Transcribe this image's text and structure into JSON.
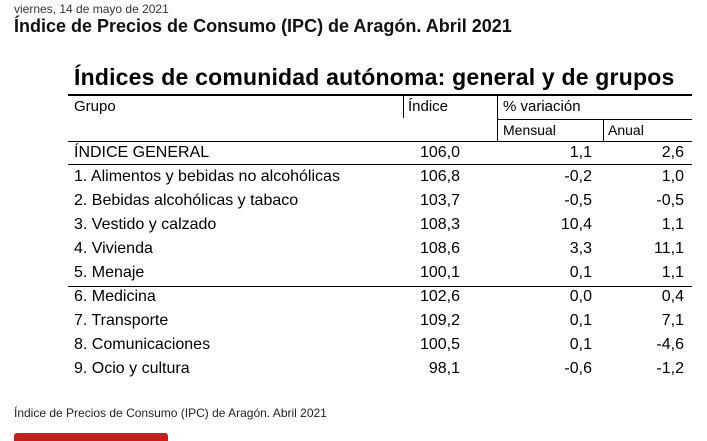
{
  "page": {
    "date": "viernes, 14 de mayo de 2021",
    "headline": "Índice de Precios de Consumo (IPC) de Aragón. Abril 2021",
    "caption": "Índice de Precios de Consumo (IPC) de Aragón. Abril 2021"
  },
  "table": {
    "title": "Índices de comunidad autónoma: general y de grupos",
    "headers": {
      "grupo": "Grupo",
      "indice": "Índice",
      "variacion": "% variación",
      "mensual": "Mensual",
      "anual": "Anual"
    },
    "rows": [
      {
        "grupo": "ÍNDICE GENERAL",
        "indice": "106,0",
        "mensual": "1,1",
        "anual": "2,6"
      },
      {
        "grupo": "1. Alimentos y bebidas no alcohólicas",
        "indice": "106,8",
        "mensual": "-0,2",
        "anual": "1,0"
      },
      {
        "grupo": "2. Bebidas alcohólicas y tabaco",
        "indice": "103,7",
        "mensual": "-0,5",
        "anual": "-0,5"
      },
      {
        "grupo": "3. Vestido y calzado",
        "indice": "108,3",
        "mensual": "10,4",
        "anual": "1,1"
      },
      {
        "grupo": "4. Vivienda",
        "indice": "108,6",
        "mensual": "3,3",
        "anual": "11,1"
      },
      {
        "grupo": "5. Menaje",
        "indice": "100,1",
        "mensual": "0,1",
        "anual": "1,1"
      },
      {
        "grupo": "6. Medicina",
        "indice": "102,6",
        "mensual": "0,0",
        "anual": "0,4"
      },
      {
        "grupo": "7. Transporte",
        "indice": "109,2",
        "mensual": "0,1",
        "anual": "7,1"
      },
      {
        "grupo": "8. Comunicaciones",
        "indice": "100,5",
        "mensual": "0,1",
        "anual": "-4,6"
      },
      {
        "grupo": "9. Ocio y cultura",
        "indice": "98,1",
        "mensual": "-0,6",
        "anual": "-1,2"
      }
    ]
  }
}
